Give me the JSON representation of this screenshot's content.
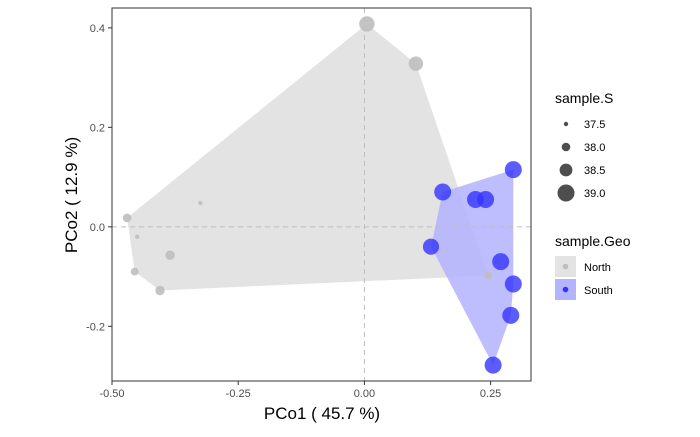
{
  "chart_data": {
    "type": "scatter",
    "xlabel": "PCo1 ( 45.7 %)",
    "ylabel": "PCo2 ( 12.9 %)",
    "xlim": [
      -0.5,
      0.33
    ],
    "ylim": [
      -0.31,
      0.44
    ],
    "x_ticks": [
      -0.5,
      -0.25,
      0.0,
      0.25
    ],
    "x_tick_labels": [
      "-0.50",
      "-0.25",
      "0.00",
      "0.25"
    ],
    "y_ticks": [
      -0.2,
      0.0,
      0.2,
      0.4
    ],
    "y_tick_labels": [
      "-0.2",
      "0.0",
      "0.2",
      "0.4"
    ],
    "reference_lines": {
      "x": 0.0,
      "y": 0.0,
      "style": "dashed"
    },
    "grid": false,
    "hulls": true,
    "legend_size": {
      "title": "sample.S",
      "entries": [
        {
          "label": "37.5",
          "value": 37.5
        },
        {
          "label": "38.0",
          "value": 38.0
        },
        {
          "label": "38.5",
          "value": 38.5
        },
        {
          "label": "39.0",
          "value": 39.0
        }
      ]
    },
    "legend_color": {
      "title": "sample.Geo",
      "entries": [
        {
          "label": "North",
          "color": "#bebebe",
          "fill": "#e3e3e3"
        },
        {
          "label": "South",
          "color": "#3333ff",
          "fill": "#b3b3ff"
        }
      ]
    },
    "series": [
      {
        "name": "North",
        "color": "#bebebe",
        "hull_fill": "#e3e3e3",
        "points": [
          {
            "x": 0.005,
            "y": 0.408,
            "s": 38.8
          },
          {
            "x": 0.102,
            "y": 0.328,
            "s": 38.7
          },
          {
            "x": -0.47,
            "y": 0.018,
            "s": 38.0
          },
          {
            "x": -0.45,
            "y": -0.02,
            "s": 37.5
          },
          {
            "x": -0.455,
            "y": -0.09,
            "s": 37.9
          },
          {
            "x": -0.405,
            "y": -0.128,
            "s": 38.1
          },
          {
            "x": -0.385,
            "y": -0.057,
            "s": 38.1
          },
          {
            "x": -0.325,
            "y": 0.048,
            "s": 37.5
          },
          {
            "x": 0.245,
            "y": -0.098,
            "s": 37.9
          }
        ]
      },
      {
        "name": "South",
        "color": "#3333ff",
        "hull_fill": "#b3b3ff",
        "points": [
          {
            "x": 0.155,
            "y": 0.07,
            "s": 39.0
          },
          {
            "x": 0.22,
            "y": 0.055,
            "s": 39.0
          },
          {
            "x": 0.24,
            "y": 0.055,
            "s": 39.0
          },
          {
            "x": 0.295,
            "y": 0.115,
            "s": 39.0
          },
          {
            "x": 0.132,
            "y": -0.04,
            "s": 38.9
          },
          {
            "x": 0.27,
            "y": -0.07,
            "s": 39.0
          },
          {
            "x": 0.295,
            "y": -0.115,
            "s": 39.0
          },
          {
            "x": 0.29,
            "y": -0.178,
            "s": 39.0
          },
          {
            "x": 0.255,
            "y": -0.278,
            "s": 39.0
          }
        ]
      }
    ]
  }
}
